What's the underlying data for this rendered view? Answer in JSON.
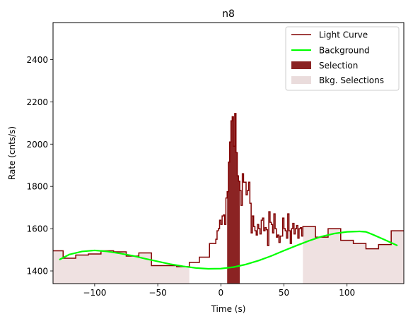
{
  "chart_data": {
    "type": "line",
    "title": "n8",
    "xlabel": "Time (s)",
    "ylabel": "Rate (cnts/s)",
    "xlim": [
      -133,
      145
    ],
    "ylim": [
      1340,
      2575
    ],
    "x_ticks": [
      -100,
      -50,
      0,
      50,
      100
    ],
    "x_tick_labels": [
      "−100",
      "−50",
      "0",
      "50",
      "100"
    ],
    "y_ticks": [
      1400,
      1600,
      1800,
      2000,
      2200,
      2400
    ],
    "y_tick_labels": [
      "1400",
      "1600",
      "1800",
      "2000",
      "2200",
      "2400"
    ],
    "grid": false,
    "legend": {
      "placement": "top-right",
      "entries": [
        {
          "label": "Light Curve",
          "kind": "line",
          "color": "#800000"
        },
        {
          "label": "Background",
          "kind": "line",
          "color": "#00ff00"
        },
        {
          "label": "Selection",
          "kind": "patch",
          "color": "#8b2323"
        },
        {
          "label": "Bkg. Selections",
          "kind": "patch",
          "color": "#eadcdc"
        }
      ]
    },
    "colors": {
      "light_curve": "#800000",
      "background": "#00ff00",
      "selection": "#8b2323",
      "bkg_selection": "#efe1e1"
    },
    "selection": {
      "x_start": 5,
      "x_end": 15
    },
    "bkg_selections": [
      {
        "x_start": -133,
        "x_end": -25
      },
      {
        "x_start": 65,
        "x_end": 145
      }
    ],
    "light_curve": {
      "x": [
        -133,
        -125,
        -115,
        -105,
        -95,
        -85,
        -75,
        -65,
        -55,
        -45,
        -35,
        -25,
        -17,
        -9,
        -4,
        -3,
        -2,
        -1,
        0,
        1,
        2,
        3,
        4,
        5,
        6,
        7,
        8,
        9,
        10,
        11,
        12,
        13,
        14,
        15,
        16,
        17,
        18,
        19,
        20,
        21,
        22,
        23,
        24,
        25,
        26,
        27,
        28,
        29,
        30,
        31,
        32,
        33,
        34,
        35,
        36,
        37,
        38,
        39,
        40,
        41,
        42,
        43,
        44,
        45,
        46,
        47,
        48,
        49,
        50,
        51,
        52,
        53,
        54,
        55,
        56,
        57,
        58,
        59,
        60,
        61,
        62,
        63,
        64,
        65,
        75,
        85,
        95,
        105,
        115,
        125,
        135,
        145
      ],
      "y": [
        1495,
        1460,
        1475,
        1480,
        1495,
        1490,
        1470,
        1485,
        1425,
        1425,
        1420,
        1440,
        1465,
        1530,
        1550,
        1590,
        1600,
        1640,
        1620,
        1660,
        1665,
        1620,
        1745,
        1775,
        1915,
        2010,
        2110,
        2130,
        1990,
        2145,
        1960,
        1850,
        1825,
        1780,
        1710,
        1860,
        1820,
        1820,
        1760,
        1780,
        1820,
        1720,
        1580,
        1660,
        1610,
        1590,
        1570,
        1620,
        1600,
        1575,
        1640,
        1650,
        1590,
        1605,
        1595,
        1520,
        1680,
        1630,
        1620,
        1580,
        1670,
        1600,
        1560,
        1570,
        1535,
        1565,
        1565,
        1650,
        1600,
        1590,
        1555,
        1670,
        1590,
        1530,
        1600,
        1625,
        1575,
        1600,
        1615,
        1555,
        1600,
        1605,
        1565,
        1610,
        1560,
        1600,
        1545,
        1530,
        1505,
        1525,
        1590,
        1590
      ]
    },
    "background": {
      "x": [
        -128,
        -120,
        -110,
        -100,
        -90,
        -80,
        -70,
        -60,
        -50,
        -40,
        -30,
        -20,
        -10,
        0,
        10,
        20,
        30,
        40,
        50,
        60,
        70,
        80,
        90,
        100,
        110,
        115,
        120,
        130,
        140
      ],
      "y": [
        1453,
        1478,
        1492,
        1497,
        1492,
        1483,
        1472,
        1458,
        1445,
        1432,
        1422,
        1414,
        1410,
        1411,
        1418,
        1431,
        1449,
        1471,
        1496,
        1520,
        1543,
        1563,
        1577,
        1585,
        1587,
        1585,
        1573,
        1547,
        1520
      ]
    }
  }
}
